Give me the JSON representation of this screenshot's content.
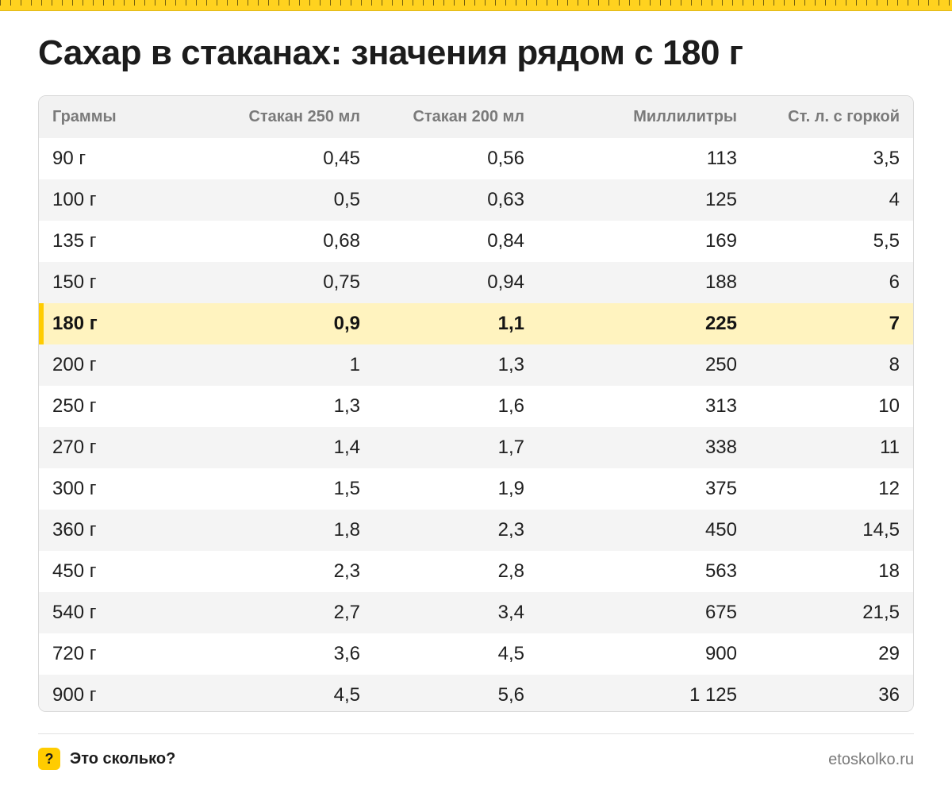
{
  "title": "Сахар в стаканах: значения рядом с 180 г",
  "colors": {
    "accent": "#ffcc00",
    "highlight_row": "#fff3bf",
    "header_bg": "#f2f2f2",
    "stripe_bg": "#f4f4f4",
    "muted_text": "#7a7a7a"
  },
  "table": {
    "headers": [
      "Граммы",
      "Стакан 250 мл",
      "Стакан 200 мл",
      "Миллилитры",
      "Ст. л. с горкой"
    ],
    "highlight_index": 4,
    "rows": [
      [
        "90 г",
        "0,45",
        "0,56",
        "113",
        "3,5"
      ],
      [
        "100 г",
        "0,5",
        "0,63",
        "125",
        "4"
      ],
      [
        "135 г",
        "0,68",
        "0,84",
        "169",
        "5,5"
      ],
      [
        "150 г",
        "0,75",
        "0,94",
        "188",
        "6"
      ],
      [
        "180 г",
        "0,9",
        "1,1",
        "225",
        "7"
      ],
      [
        "200 г",
        "1",
        "1,3",
        "250",
        "8"
      ],
      [
        "250 г",
        "1,3",
        "1,6",
        "313",
        "10"
      ],
      [
        "270 г",
        "1,4",
        "1,7",
        "338",
        "11"
      ],
      [
        "300 г",
        "1,5",
        "1,9",
        "375",
        "12"
      ],
      [
        "360 г",
        "1,8",
        "2,3",
        "450",
        "14,5"
      ],
      [
        "450 г",
        "2,3",
        "2,8",
        "563",
        "18"
      ],
      [
        "540 г",
        "2,7",
        "3,4",
        "675",
        "21,5"
      ],
      [
        "720 г",
        "3,6",
        "4,5",
        "900",
        "29"
      ],
      [
        "900 г",
        "4,5",
        "5,6",
        "1 125",
        "36"
      ]
    ]
  },
  "footer": {
    "badge_glyph": "?",
    "brand": "Это сколько?",
    "site": "etoskolko.ru"
  }
}
